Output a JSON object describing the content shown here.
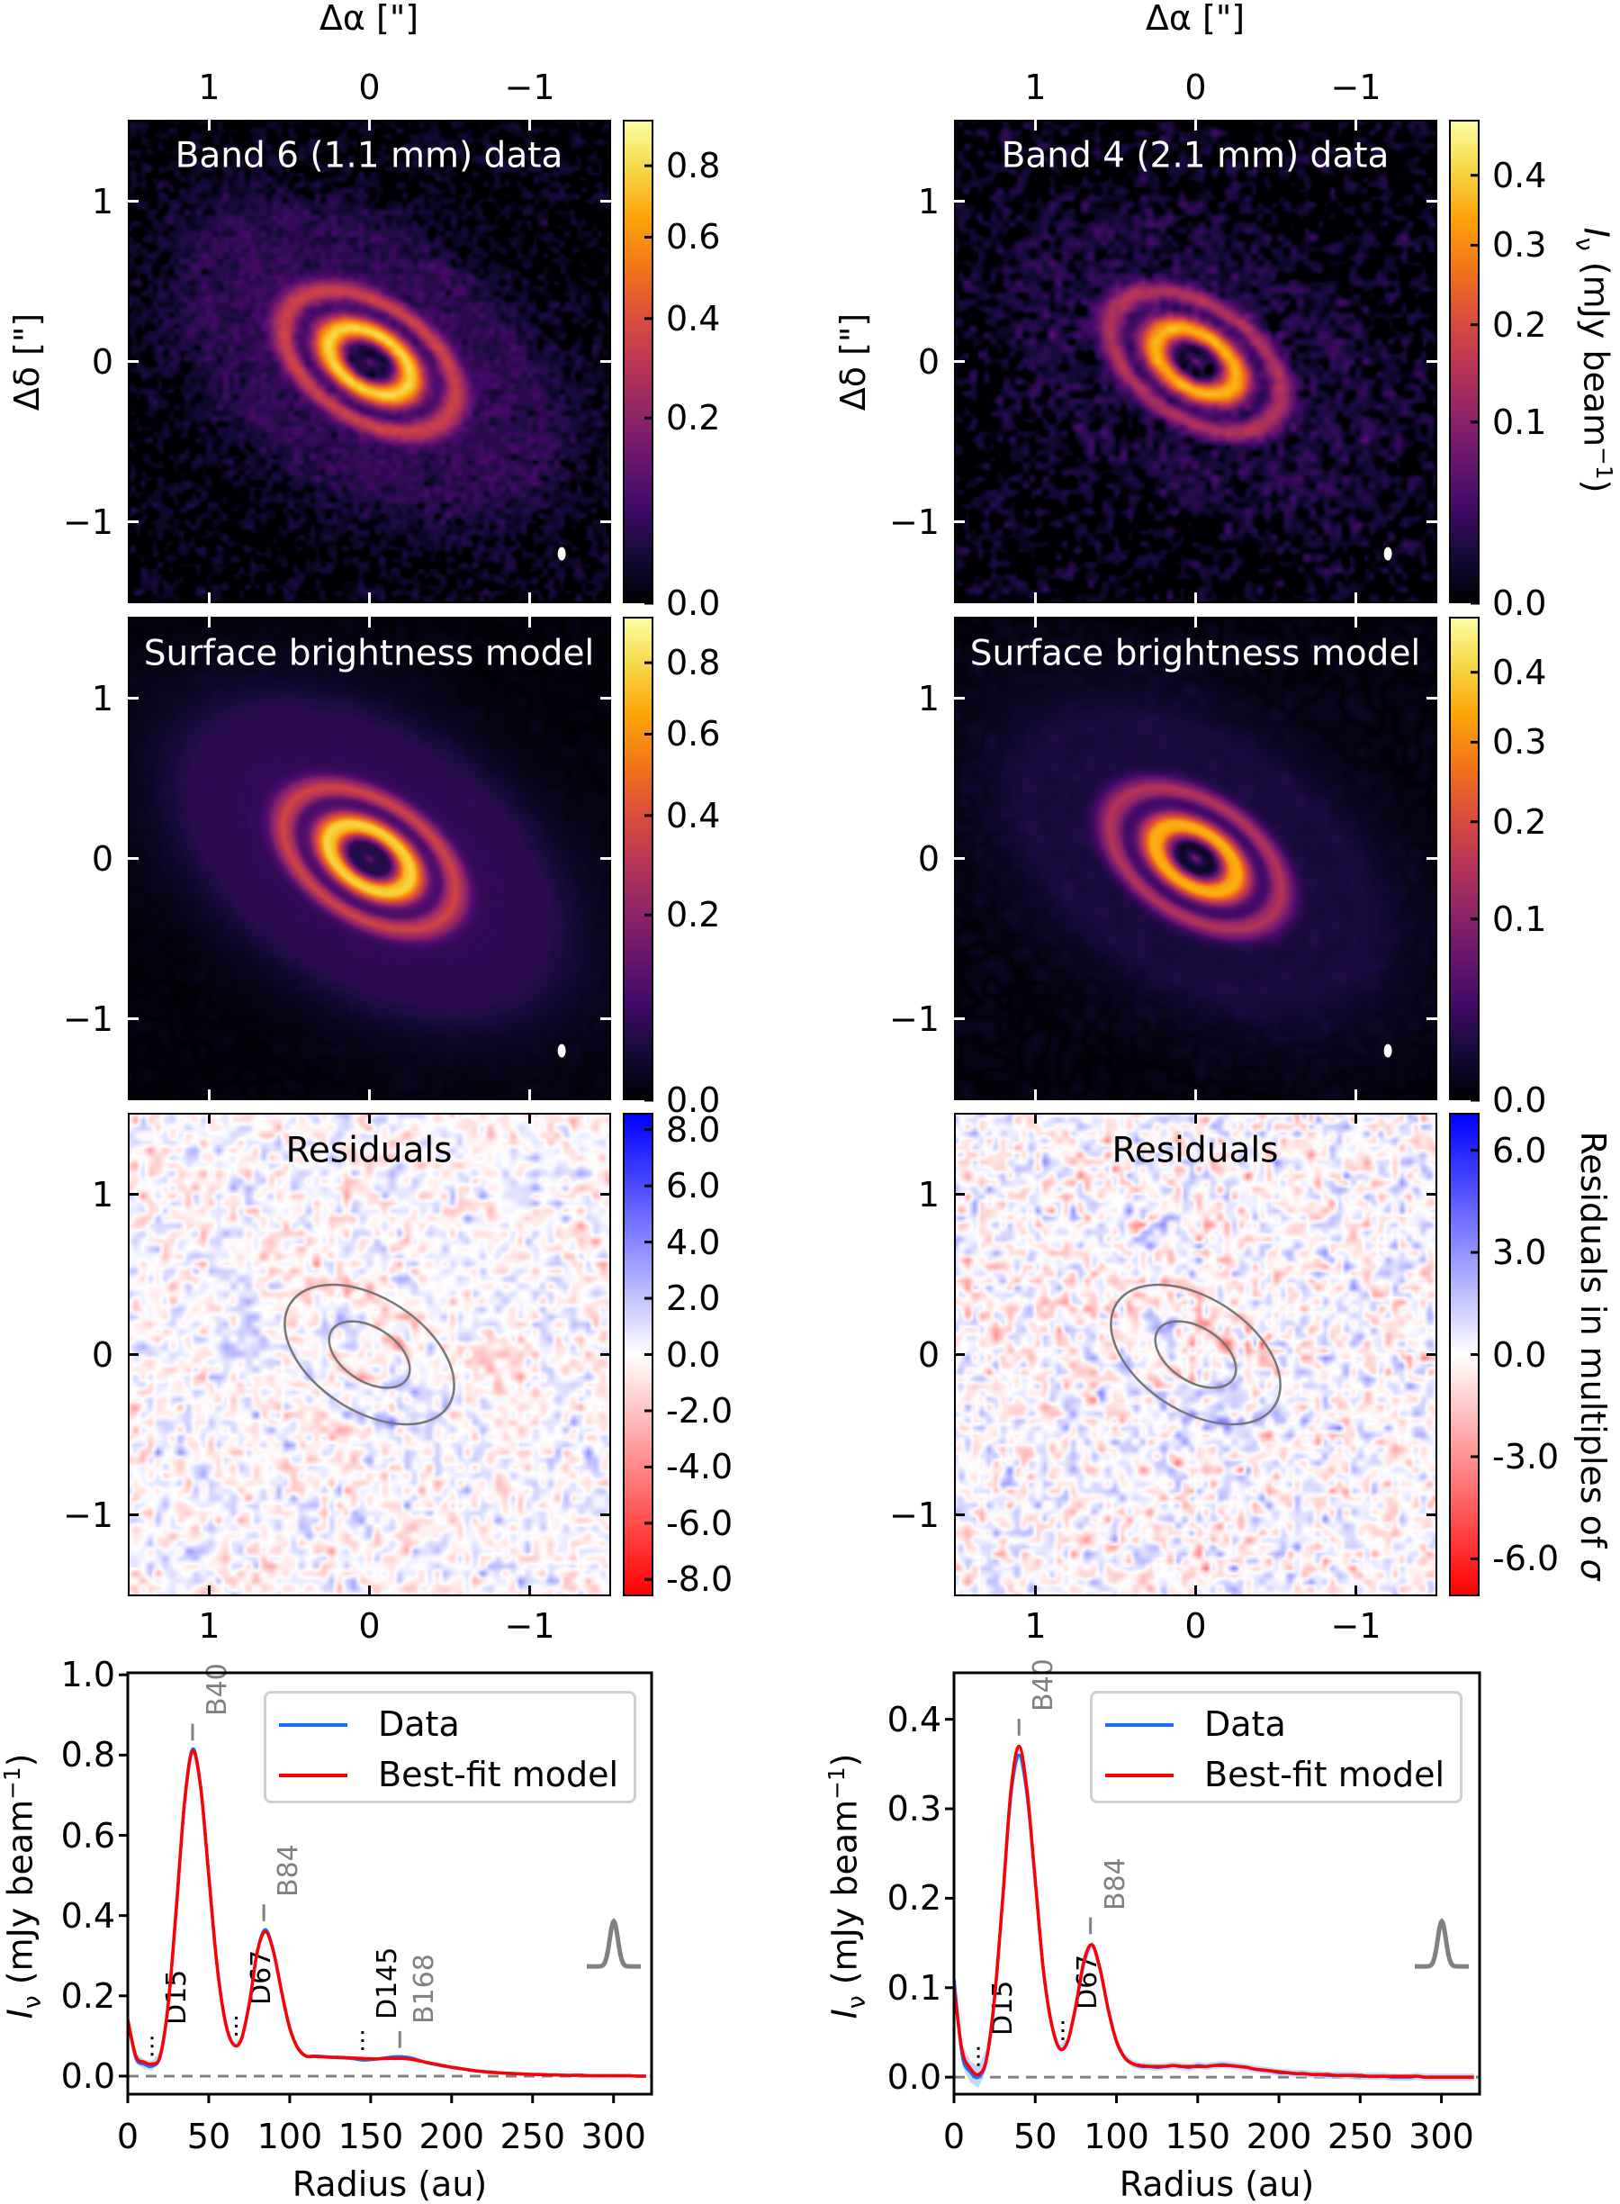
{
  "figure": {
    "ra_label": "Δα [\"]",
    "dec_label": "Δδ [\"]",
    "ra_ticks": [
      {
        "value": 1,
        "label": "1"
      },
      {
        "value": 0,
        "label": "0"
      },
      {
        "value": -1,
        "label": "−1"
      }
    ],
    "dec_ticks": [
      {
        "value": 1,
        "label": "1"
      },
      {
        "value": 0,
        "label": "0"
      },
      {
        "value": -1,
        "label": "−1"
      }
    ],
    "intensity_label": {
      "symbol": "I",
      "subscript": "ν",
      "unit": " (mJy beam",
      "unit_exp": "−1",
      "close": ")"
    },
    "residual_label": "Residuals in multiples of ",
    "residual_label_symbol": "σ"
  },
  "panels": [
    {
      "data_title": "Band 6 (1.1 mm) data",
      "model_title": "Surface brightness model",
      "residual_title": "Residuals",
      "intensity_cbar": {
        "max": 0.94,
        "stretch_power": 0.62,
        "ticks": [
          {
            "value": 0.0,
            "label": "0.0"
          },
          {
            "value": 0.2,
            "label": "0.2"
          },
          {
            "value": 0.4,
            "label": "0.4"
          },
          {
            "value": 0.6,
            "label": "0.6"
          },
          {
            "value": 0.8,
            "label": "0.8"
          }
        ]
      },
      "residual_cbar": {
        "range": [
          -8.6,
          8.6
        ],
        "ticks": [
          {
            "value": 8,
            "label": "8.0"
          },
          {
            "value": 6,
            "label": "6.0"
          },
          {
            "value": 4,
            "label": "4.0"
          },
          {
            "value": 2,
            "label": "2.0"
          },
          {
            "value": 0,
            "label": "0.0"
          },
          {
            "value": -2,
            "label": "-2.0"
          },
          {
            "value": -4,
            "label": "-4.0"
          },
          {
            "value": -6,
            "label": "-6.0"
          },
          {
            "value": -8,
            "label": "-8.0"
          }
        ]
      }
    },
    {
      "data_title": "Band 4 (2.1 mm) data",
      "model_title": "Surface brightness model",
      "residual_title": "Residuals",
      "intensity_cbar": {
        "max": 0.487,
        "stretch_power": 0.62,
        "ticks": [
          {
            "value": 0.0,
            "label": "0.0"
          },
          {
            "value": 0.1,
            "label": "0.1"
          },
          {
            "value": 0.2,
            "label": "0.2"
          },
          {
            "value": 0.3,
            "label": "0.3"
          },
          {
            "value": 0.4,
            "label": "0.4"
          }
        ]
      },
      "residual_cbar": {
        "range": [
          -7.1,
          7.1
        ],
        "ticks": [
          {
            "value": 6,
            "label": "6.0"
          },
          {
            "value": 3,
            "label": "3.0"
          },
          {
            "value": 0,
            "label": "0.0"
          },
          {
            "value": -3,
            "label": "-3.0"
          },
          {
            "value": -6,
            "label": "-6.0"
          }
        ]
      }
    }
  ],
  "colors": {
    "data_line": "#1a6dff",
    "data_band": "#a9c9f7",
    "model_line": "#ff0000",
    "bright_annotation": "#808080",
    "dark_annotation": "#000000",
    "zero_line": "#808080",
    "residual_positive": "#0000ff",
    "residual_negative": "#ff0000",
    "colormap": "inferno"
  },
  "chart_data": [
    {
      "type": "line",
      "xlabel": "Radius (au)",
      "ylabel": {
        "symbol": "I",
        "subscript": "ν",
        "unit": " (mJy beam",
        "unit_exp": "−1",
        "close": ")"
      },
      "xlim": [
        0,
        323.5
      ],
      "ylim": [
        -0.045,
        1.005
      ],
      "xticks": [
        {
          "value": 0,
          "label": "0"
        },
        {
          "value": 50,
          "label": "50"
        },
        {
          "value": 100,
          "label": "100"
        },
        {
          "value": 150,
          "label": "150"
        },
        {
          "value": 200,
          "label": "200"
        },
        {
          "value": 250,
          "label": "250"
        },
        {
          "value": 300,
          "label": "300"
        }
      ],
      "yticks": [
        {
          "value": 0.0,
          "label": "0.0"
        },
        {
          "value": 0.2,
          "label": "0.2"
        },
        {
          "value": 0.4,
          "label": "0.4"
        },
        {
          "value": 0.6,
          "label": "0.6"
        },
        {
          "value": 0.8,
          "label": "0.8"
        },
        {
          "value": 1.0,
          "label": "1.0"
        }
      ],
      "legend": "top-right",
      "x": [
        0,
        5,
        10,
        15,
        20,
        25,
        30,
        35,
        40,
        45,
        50,
        55,
        60,
        65,
        70,
        75,
        80,
        85,
        90,
        95,
        100,
        105,
        110,
        115,
        120,
        125,
        130,
        135,
        140,
        145,
        150,
        155,
        160,
        165,
        170,
        175,
        180,
        185,
        190,
        195,
        200,
        205,
        210,
        215,
        220,
        225,
        230,
        235,
        240,
        245,
        250,
        255,
        260,
        265,
        270,
        275,
        280,
        285,
        290,
        295,
        300,
        305,
        310,
        315,
        320
      ],
      "series": [
        {
          "name": "Data",
          "values": [
            0.14,
            0.045,
            0.03,
            0.025,
            0.05,
            0.18,
            0.42,
            0.68,
            0.815,
            0.72,
            0.5,
            0.28,
            0.14,
            0.08,
            0.09,
            0.18,
            0.31,
            0.365,
            0.31,
            0.21,
            0.12,
            0.07,
            0.05,
            0.05,
            0.049,
            0.047,
            0.046,
            0.045,
            0.043,
            0.04,
            0.041,
            0.043,
            0.046,
            0.048,
            0.048,
            0.045,
            0.039,
            0.033,
            0.029,
            0.025,
            0.022,
            0.019,
            0.016,
            0.013,
            0.011,
            0.01,
            0.008,
            0.007,
            0.006,
            0.005,
            0.004,
            0.004,
            0.003,
            0.003,
            0.002,
            0.002,
            0.002,
            0.001,
            0.001,
            0.001,
            0.001,
            0.001,
            0.001,
            0.0,
            0.0
          ]
        },
        {
          "name": "Best-fit model",
          "values": [
            0.14,
            0.05,
            0.035,
            0.03,
            0.05,
            0.18,
            0.42,
            0.68,
            0.81,
            0.72,
            0.5,
            0.28,
            0.14,
            0.08,
            0.09,
            0.18,
            0.31,
            0.36,
            0.31,
            0.21,
            0.12,
            0.07,
            0.05,
            0.049,
            0.048,
            0.047,
            0.047,
            0.046,
            0.045,
            0.044,
            0.043,
            0.043,
            0.044,
            0.044,
            0.044,
            0.042,
            0.038,
            0.034,
            0.03,
            0.026,
            0.022,
            0.019,
            0.016,
            0.013,
            0.011,
            0.009,
            0.008,
            0.007,
            0.006,
            0.005,
            0.004,
            0.004,
            0.003,
            0.003,
            0.002,
            0.002,
            0.002,
            0.001,
            0.001,
            0.001,
            0.001,
            0.001,
            0.001,
            0.0,
            0.0
          ]
        }
      ],
      "annotations": [
        {
          "label": "D15",
          "radius": 15,
          "kind": "gap"
        },
        {
          "label": "B40",
          "radius": 40,
          "kind": "ring"
        },
        {
          "label": "D67",
          "radius": 67,
          "kind": "gap"
        },
        {
          "label": "B84",
          "radius": 84,
          "kind": "ring"
        },
        {
          "label": "D145",
          "radius": 145,
          "kind": "gap"
        },
        {
          "label": "B168",
          "radius": 168,
          "kind": "ring"
        }
      ],
      "beam_icon": "gaussian-beam-icon"
    },
    {
      "type": "line",
      "xlabel": "Radius (au)",
      "ylabel": {
        "symbol": "I",
        "subscript": "ν",
        "unit": " (mJy beam",
        "unit_exp": "−1",
        "close": ")"
      },
      "xlim": [
        0,
        323.5
      ],
      "ylim": [
        -0.019,
        0.452
      ],
      "xticks": [
        {
          "value": 0,
          "label": "0"
        },
        {
          "value": 50,
          "label": "50"
        },
        {
          "value": 100,
          "label": "100"
        },
        {
          "value": 150,
          "label": "150"
        },
        {
          "value": 200,
          "label": "200"
        },
        {
          "value": 250,
          "label": "250"
        },
        {
          "value": 300,
          "label": "300"
        }
      ],
      "yticks": [
        {
          "value": 0.0,
          "label": "0.0"
        },
        {
          "value": 0.1,
          "label": "0.1"
        },
        {
          "value": 0.2,
          "label": "0.2"
        },
        {
          "value": 0.3,
          "label": "0.3"
        },
        {
          "value": 0.4,
          "label": "0.4"
        }
      ],
      "legend": "top-right",
      "x": [
        0,
        5,
        10,
        15,
        20,
        25,
        30,
        35,
        40,
        45,
        50,
        55,
        60,
        65,
        70,
        75,
        80,
        85,
        90,
        95,
        100,
        105,
        110,
        115,
        120,
        125,
        130,
        135,
        140,
        145,
        150,
        155,
        160,
        165,
        170,
        175,
        180,
        185,
        190,
        195,
        200,
        205,
        210,
        215,
        220,
        225,
        230,
        235,
        240,
        245,
        250,
        255,
        260,
        265,
        270,
        275,
        280,
        285,
        290,
        295,
        300,
        305,
        310,
        315,
        320
      ],
      "series": [
        {
          "name": "Data",
          "values": [
            0.11,
            0.025,
            0.006,
            0.0,
            0.02,
            0.088,
            0.2,
            0.315,
            0.36,
            0.315,
            0.22,
            0.12,
            0.06,
            0.032,
            0.04,
            0.08,
            0.128,
            0.148,
            0.12,
            0.075,
            0.04,
            0.022,
            0.015,
            0.012,
            0.012,
            0.011,
            0.012,
            0.013,
            0.012,
            0.011,
            0.013,
            0.012,
            0.013,
            0.014,
            0.013,
            0.012,
            0.011,
            0.009,
            0.008,
            0.007,
            0.005,
            0.005,
            0.004,
            0.004,
            0.003,
            0.003,
            0.002,
            0.002,
            0.002,
            0.002,
            0.001,
            0.001,
            0.001,
            0.001,
            0.0,
            0.0,
            0.0,
            0.001,
            0.0,
            0.0,
            0.0,
            0.0,
            0.0,
            0.0,
            0.0
          ]
        },
        {
          "name": "Best-fit model",
          "values": [
            0.1,
            0.03,
            0.01,
            0.003,
            0.02,
            0.09,
            0.2,
            0.32,
            0.37,
            0.32,
            0.22,
            0.12,
            0.06,
            0.032,
            0.04,
            0.08,
            0.13,
            0.148,
            0.12,
            0.075,
            0.04,
            0.022,
            0.015,
            0.013,
            0.012,
            0.012,
            0.012,
            0.013,
            0.012,
            0.012,
            0.012,
            0.012,
            0.013,
            0.013,
            0.013,
            0.012,
            0.011,
            0.009,
            0.008,
            0.007,
            0.006,
            0.005,
            0.004,
            0.004,
            0.003,
            0.003,
            0.003,
            0.002,
            0.002,
            0.002,
            0.002,
            0.001,
            0.001,
            0.001,
            0.001,
            0.001,
            0.001,
            0.001,
            0.0,
            0.0,
            0.0,
            0.0,
            0.0,
            0.0,
            0.0
          ]
        }
      ],
      "annotations": [
        {
          "label": "D15",
          "radius": 15,
          "kind": "gap"
        },
        {
          "label": "B40",
          "radius": 40,
          "kind": "ring"
        },
        {
          "label": "D67",
          "radius": 67,
          "kind": "gap"
        },
        {
          "label": "B84",
          "radius": 84,
          "kind": "ring"
        }
      ],
      "beam_icon": "gaussian-beam-icon"
    }
  ]
}
